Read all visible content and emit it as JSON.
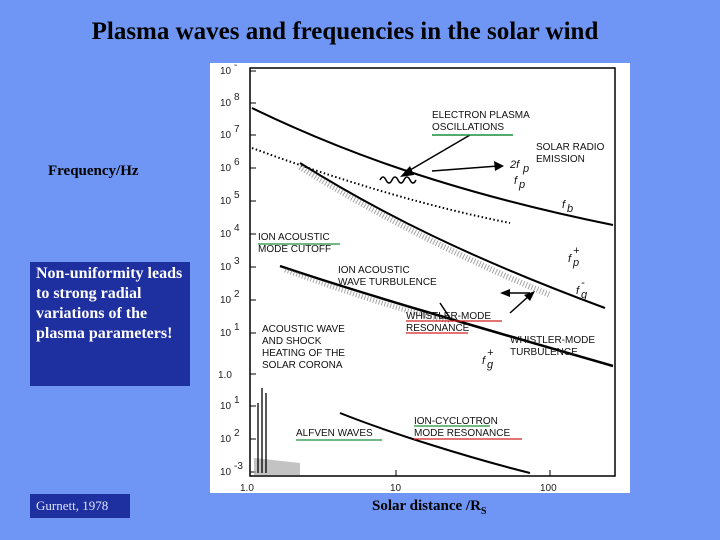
{
  "slide": {
    "title": "Plasma waves and frequencies in the solar wind",
    "y_axis_label": "Frequency/Hz",
    "callout": "Non-uniformity leads to strong radial variations of the plasma parameters!",
    "citation": "Gurnett, 1978",
    "x_axis_label": "Solar distance /R",
    "x_axis_subscript": "S"
  },
  "figure": {
    "y_ticks": [
      {
        "base": "10",
        "exp": "-"
      },
      {
        "base": "10",
        "exp": "8"
      },
      {
        "base": "10",
        "exp": "7"
      },
      {
        "base": "10",
        "exp": "6"
      },
      {
        "base": "10",
        "exp": "5"
      },
      {
        "base": "10",
        "exp": "4"
      },
      {
        "base": "10",
        "exp": "3"
      },
      {
        "base": "10",
        "exp": "2"
      },
      {
        "base": "10",
        "exp": "1"
      },
      {
        "base": "1.0",
        "exp": ""
      },
      {
        "base": "10",
        "exp": "1"
      },
      {
        "base": "10",
        "exp": "2"
      },
      {
        "base": "10",
        "exp": "-3"
      }
    ],
    "x_ticks": [
      "1.0",
      "10",
      "100"
    ],
    "annotations": {
      "electron_plasma": [
        "ELECTRON PLASMA",
        "OSCILLATIONS"
      ],
      "solar_radio": [
        "SOLAR RADIO",
        "EMISSION"
      ],
      "ion_acoustic_cutoff": [
        "ION ACOUSTIC",
        "MODE CUTOFF"
      ],
      "ion_acoustic_turb": [
        "ION ACOUSTIC",
        "WAVE TURBULENCE"
      ],
      "whistler_res": [
        "WHISTLER-MODE",
        "RESONANCE"
      ],
      "whistler_turb": [
        "WHISTLER-MODE",
        "TURBULENCE"
      ],
      "acoustic_shock": [
        "ACOUSTIC WAVE",
        "AND SHOCK",
        "HEATING OF THE",
        "SOLAR CORONA"
      ],
      "alfven": "ALFVEN WAVES",
      "ion_cyclotron": [
        "ION-CYCLOTRON",
        "MODE RESONANCE"
      ]
    },
    "symbols": {
      "two_fp": "2f",
      "two_fp_sub": "p",
      "fp": "f",
      "fp_sub": "p",
      "fb": "f",
      "fb_sub": "b",
      "fp_plus": "f",
      "fp_plus_sub": "p",
      "fp_plus_sup": "+",
      "fg_minus": "f",
      "fg_minus_sub": "g",
      "fg_minus_sup": "-",
      "fg_plus": "f",
      "fg_plus_sub": "g",
      "fg_plus_sup": "+"
    },
    "colors": {
      "underline_green": "#1a8f3a",
      "underline_red": "#d42020",
      "background": "#6f96f4",
      "callout_box": "#1e2fa0"
    }
  }
}
